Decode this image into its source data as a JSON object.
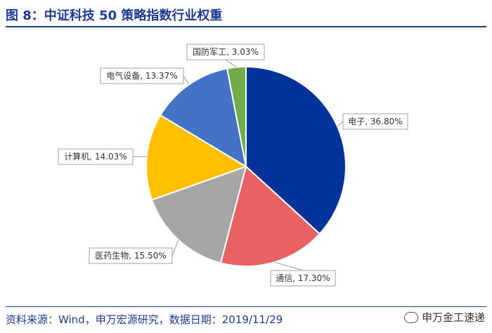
{
  "title": "图 8：中证科技 50 策略指数行业权重",
  "source": "资料来源：Wind，申万宏源研究，数据日期：2019/11/29",
  "brand": "申万金工速递",
  "chart_data": {
    "type": "pie",
    "slices": [
      {
        "label": "电子",
        "value": 36.8,
        "display": "电子, 36.80%",
        "color": "#003399"
      },
      {
        "label": "通信",
        "value": 17.3,
        "display": "通信, 17.30%",
        "color": "#e86163"
      },
      {
        "label": "医药生物",
        "value": 15.5,
        "display": "医药生物, 15.50%",
        "color": "#a6a6a6"
      },
      {
        "label": "计算机",
        "value": 14.03,
        "display": "计算机, 14.03%",
        "color": "#ffc000"
      },
      {
        "label": "电气设备",
        "value": 13.37,
        "display": "电气设备, 13.37%",
        "color": "#4472c4"
      },
      {
        "label": "国防军工",
        "value": 3.03,
        "display": "国防军工, 3.03%",
        "color": "#70ad47"
      }
    ]
  }
}
